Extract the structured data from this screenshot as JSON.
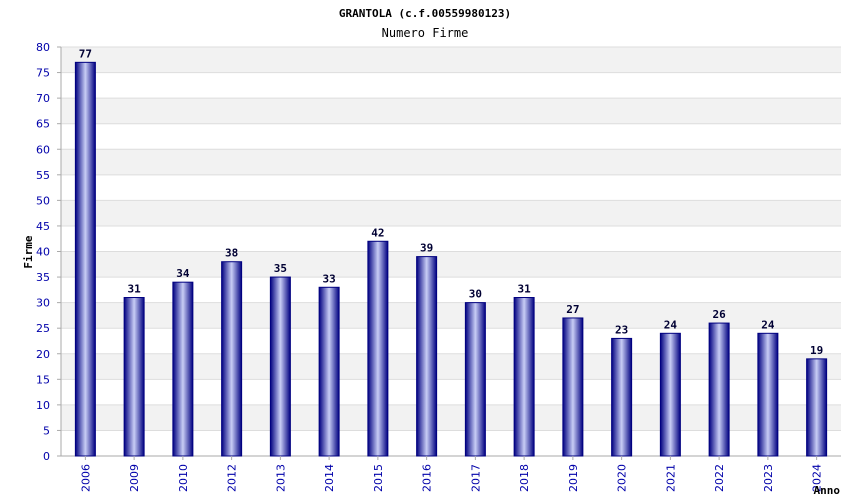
{
  "chart_data": {
    "type": "bar",
    "title": "GRANTOLA (c.f.00559980123)",
    "subtitle": "Numero Firme",
    "xlabel": "Anno",
    "ylabel": "Firme",
    "ylim": [
      0,
      80
    ],
    "ytick_step": 5,
    "grid": true,
    "categories": [
      "2006",
      "2009",
      "2010",
      "2012",
      "2013",
      "2014",
      "2015",
      "2016",
      "2017",
      "2018",
      "2019",
      "2020",
      "2021",
      "2022",
      "2023",
      "2024"
    ],
    "values": [
      77,
      31,
      34,
      38,
      35,
      33,
      42,
      39,
      30,
      31,
      27,
      23,
      24,
      26,
      24,
      19
    ],
    "colors": {
      "bar_dark": "#000080",
      "bar_light": "#c8cdf5",
      "band": "#f2f2f2",
      "gridline": "#dddddd",
      "axis": "#aaaaaa",
      "tick_text": "#0000aa"
    }
  }
}
